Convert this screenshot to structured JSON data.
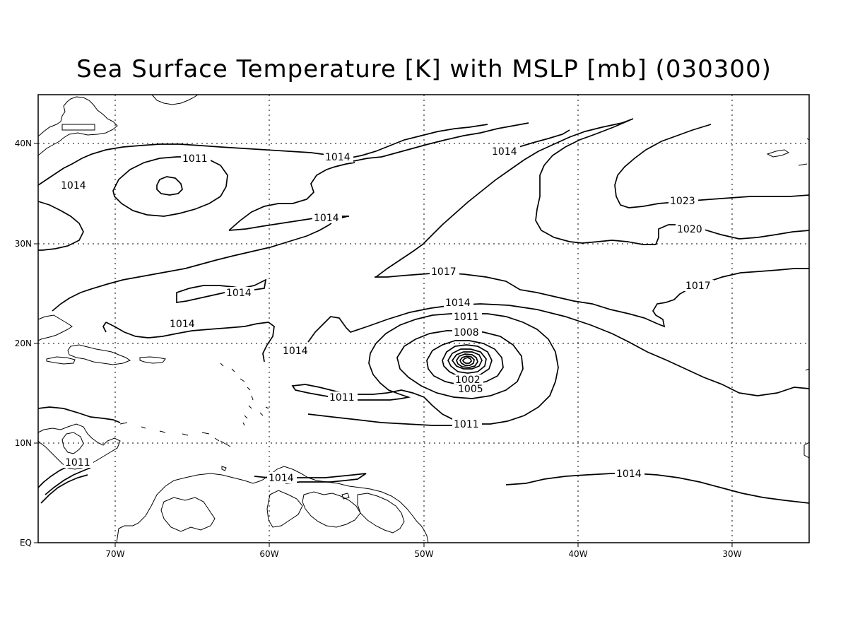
{
  "title": "Sea Surface Temperature [K] with MSLP [mb] (030300)",
  "axes": {
    "x_ticks": [
      "70W",
      "60W",
      "50W",
      "40W",
      "30W"
    ],
    "y_ticks": [
      "EQ",
      "10N",
      "20N",
      "30N",
      "40N"
    ]
  },
  "contour_labels": [
    "1014",
    "1011",
    "1014",
    "1014",
    "1014",
    "1014",
    "1014",
    "1014",
    "1014",
    "1023",
    "1020",
    "1017",
    "1017",
    "1014",
    "1011",
    "1008",
    "1002",
    "1005",
    "1011",
    "1011",
    "1014",
    "1011",
    "1014"
  ]
}
